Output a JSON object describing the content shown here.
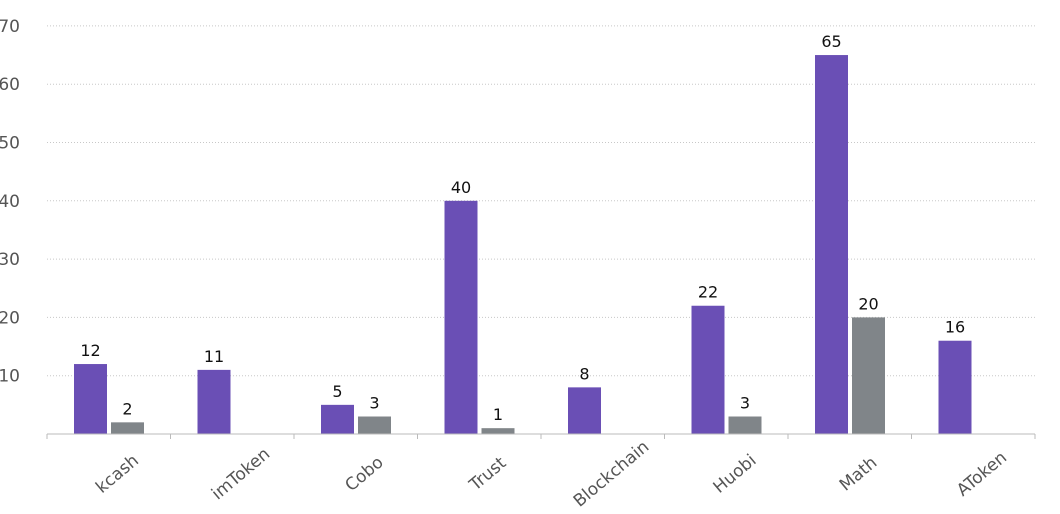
{
  "chart_data": {
    "type": "bar",
    "categories": [
      "kcash",
      "imToken",
      "Cobo",
      "Trust",
      "Blockchain",
      "Huobi",
      "Math",
      "AToken"
    ],
    "series": [
      {
        "values": [
          12,
          11,
          5,
          40,
          8,
          22,
          65,
          16
        ],
        "color": "#6a4fb5"
      },
      {
        "values": [
          2,
          null,
          3,
          1,
          null,
          3,
          20,
          null
        ],
        "color": "#808589"
      }
    ],
    "ylim": [
      0,
      70
    ],
    "yticks": [
      10,
      20,
      30,
      40,
      50,
      60,
      70
    ],
    "grid": true,
    "title": "",
    "xlabel": "",
    "ylabel": ""
  }
}
